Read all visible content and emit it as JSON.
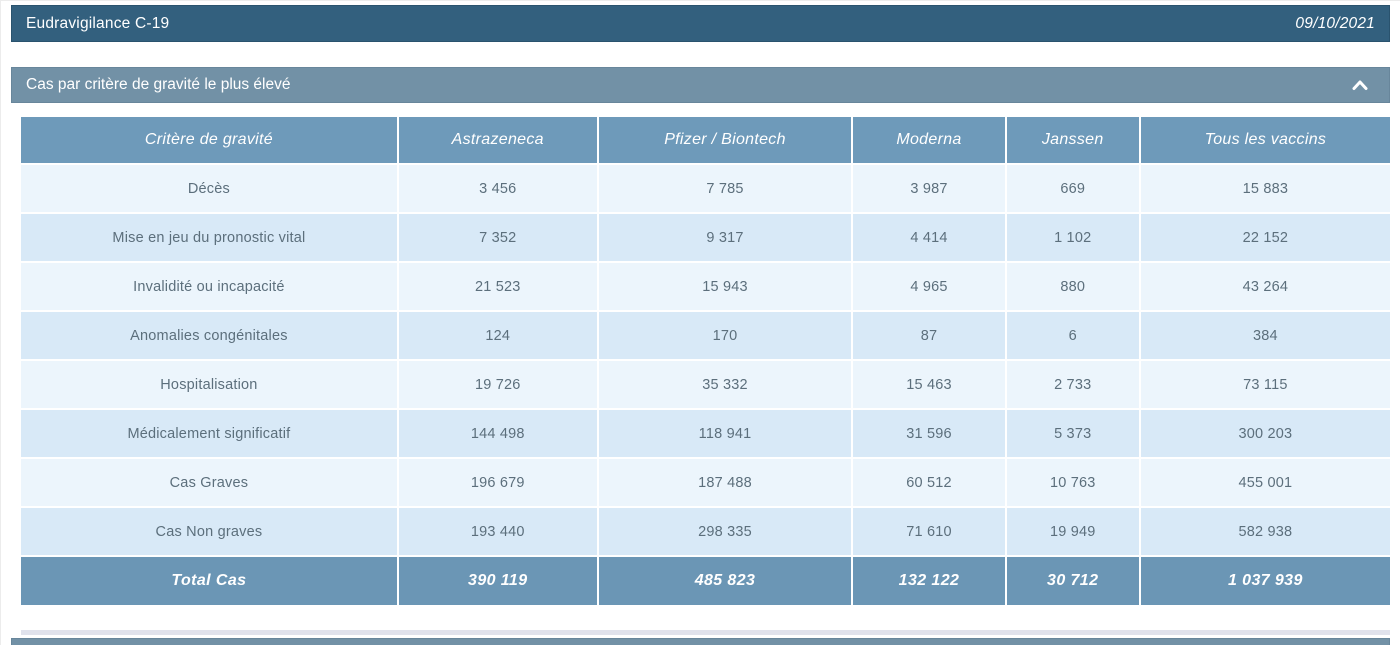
{
  "app": {
    "title": "Eudravigilance C-19",
    "date": "09/10/2021"
  },
  "section": {
    "title": "Cas par critère de gravité le plus élevé",
    "collapse_icon": "chevron-up"
  },
  "chart_data": {
    "type": "table",
    "title": "Cas par critère de gravité le plus élevé",
    "columns": [
      "Critère de gravité",
      "Astrazeneca",
      "Pfizer / Biontech",
      "Moderna",
      "Janssen",
      "Tous les vaccins"
    ],
    "rows": [
      {
        "label": "Décès",
        "values": [
          "3 456",
          "7 785",
          "3 987",
          "669",
          "15 883"
        ]
      },
      {
        "label": "Mise en jeu du pronostic vital",
        "values": [
          "7 352",
          "9 317",
          "4 414",
          "1 102",
          "22 152"
        ]
      },
      {
        "label": "Invalidité ou incapacité",
        "values": [
          "21 523",
          "15 943",
          "4 965",
          "880",
          "43 264"
        ]
      },
      {
        "label": "Anomalies congénitales",
        "values": [
          "124",
          "170",
          "87",
          "6",
          "384"
        ]
      },
      {
        "label": "Hospitalisation",
        "values": [
          "19 726",
          "35 332",
          "15 463",
          "2 733",
          "73 115"
        ]
      },
      {
        "label": "Médicalement significatif",
        "values": [
          "144 498",
          "118 941",
          "31 596",
          "5 373",
          "300 203"
        ]
      },
      {
        "label": "Cas Graves",
        "values": [
          "196 679",
          "187 488",
          "60 512",
          "10 763",
          "455 001"
        ]
      },
      {
        "label": "Cas Non graves",
        "values": [
          "193 440",
          "298 335",
          "71 610",
          "19 949",
          "582 938"
        ]
      }
    ],
    "total": {
      "label": "Total Cas",
      "values": [
        "390 119",
        "485 823",
        "132 122",
        "30 712",
        "1 037 939"
      ]
    }
  },
  "colors": {
    "topbar_bg": "#33607e",
    "section_bg": "#7291a6",
    "table_header_bg": "#6e9aba",
    "row_light": "#ecf5fc",
    "row_dark": "#d8e9f7",
    "total_bg": "#6b96b5",
    "cell_text": "#5c6f7c"
  }
}
